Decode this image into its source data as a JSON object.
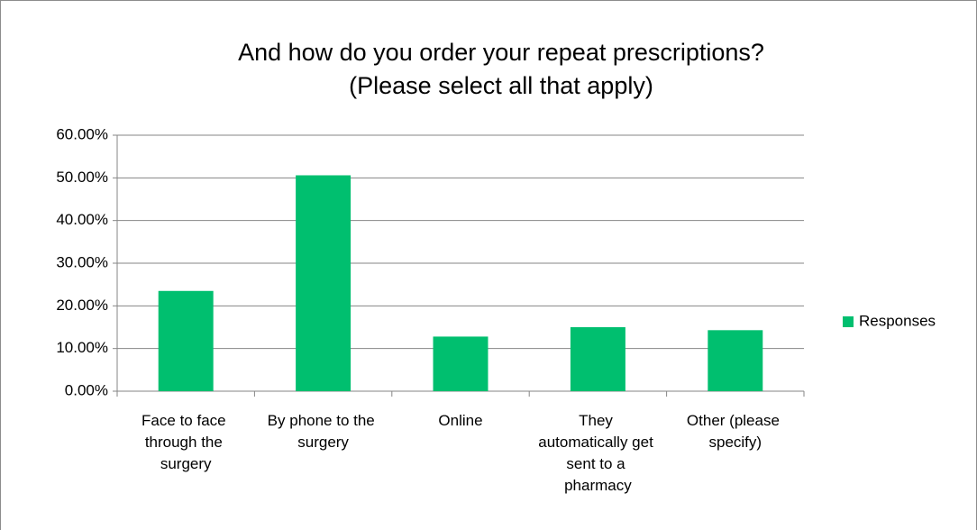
{
  "chart_data": {
    "type": "bar",
    "title": [
      "And how do you order your repeat prescriptions?",
      "(Please select all that apply)"
    ],
    "categories": [
      "Face to face through the surgery",
      "By phone to the surgery",
      "Online",
      "They automatically get sent to a pharmacy",
      "Other (please specify)"
    ],
    "series": [
      {
        "name": "Responses",
        "color": "#00bf6f",
        "values": [
          23.5,
          50.6,
          12.8,
          15.0,
          14.3
        ]
      }
    ],
    "ylim": [
      0,
      60
    ],
    "yticks": [
      {
        "value": 0,
        "label": "0.00%"
      },
      {
        "value": 10,
        "label": "10.00%"
      },
      {
        "value": 20,
        "label": "20.00%"
      },
      {
        "value": 30,
        "label": "30.00%"
      },
      {
        "value": 40,
        "label": "40.00%"
      },
      {
        "value": 50,
        "label": "50.00%"
      },
      {
        "value": 60,
        "label": "60.00%"
      }
    ],
    "grid": true,
    "legend": "right"
  }
}
